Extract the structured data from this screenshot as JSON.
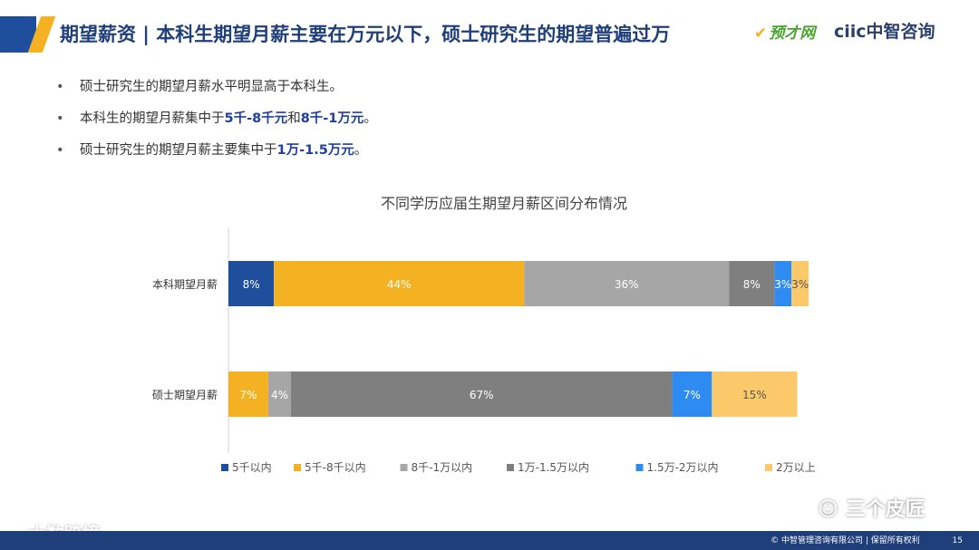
{
  "header": {
    "title": "期望薪资 | 本科生期望月薪主要在万元以下，硕士研究生的期望普遍过万",
    "logo_left": "预才网",
    "logo_right": "ciic中智咨询"
  },
  "bullets": [
    {
      "pre": "硕士研究生的期望月薪水平明显高于本科生。",
      "hl1": "",
      "mid": "",
      "hl2": "",
      "post": ""
    },
    {
      "pre": "本科生的期望月薪集中于",
      "hl1": "5千-8千元",
      "mid": "和",
      "hl2": "8千-1万元",
      "post": "。"
    },
    {
      "pre": "硕士研究生的期望月薪主要集中于",
      "hl1": "1万-1.5万元",
      "mid": "",
      "hl2": "",
      "post": "。"
    }
  ],
  "chart_data": {
    "type": "bar",
    "orientation": "horizontal",
    "stacked": true,
    "title": "不同学历应届生期望月薪区间分布情况",
    "categories": [
      "本科期望月薪",
      "硕士期望月薪"
    ],
    "series": [
      {
        "name": "5千以内",
        "values": [
          8,
          0
        ],
        "color": "#1f4e9c",
        "label_color": "#ffffff"
      },
      {
        "name": "5千-8千以内",
        "values": [
          44,
          7
        ],
        "color": "#f4b223",
        "label_color": "#ffffff"
      },
      {
        "name": "8千-1万以内",
        "values": [
          36,
          4
        ],
        "color": "#a6a6a6",
        "label_color": "#ffffff"
      },
      {
        "name": "1万-1.5万以内",
        "values": [
          8,
          67
        ],
        "color": "#7f7f7f",
        "label_color": "#ffffff"
      },
      {
        "name": "1.5万-2万以内",
        "values": [
          3,
          7
        ],
        "color": "#2e8bf2",
        "label_color": "#ffffff"
      },
      {
        "name": "2万以上",
        "values": [
          3,
          15
        ],
        "color": "#fbc96a",
        "label_color": "#555555"
      }
    ],
    "data_labels": [
      [
        "8%",
        "44%",
        "36%",
        "8%",
        "3%",
        "3%"
      ],
      [
        "",
        "7%",
        "4%",
        "67%",
        "7%",
        "15%"
      ]
    ],
    "xlim": [
      0,
      102
    ],
    "legend_position": "bottom",
    "grid": false
  },
  "footer": {
    "copyright": "© 中智管理咨询有限公司 | 保留所有权利",
    "page": "15"
  },
  "watermarks": {
    "left": "大数跨境",
    "right": "三个皮匠"
  }
}
